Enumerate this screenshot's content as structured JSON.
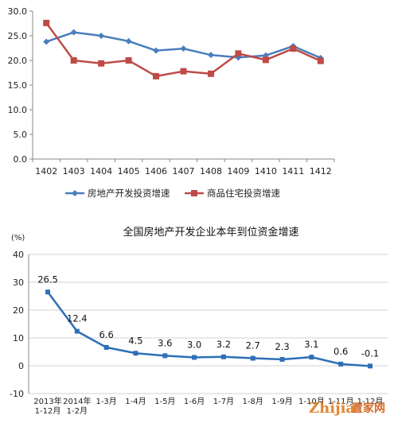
{
  "chart_data": [
    {
      "type": "line",
      "title": "",
      "categories": [
        "1402",
        "1403",
        "1404",
        "1405",
        "1406",
        "1407",
        "1408",
        "1409",
        "1410",
        "1411",
        "1412"
      ],
      "ylim": [
        0,
        30
      ],
      "yticks": [
        "0.0",
        "5.0",
        "10.0",
        "15.0",
        "20.0",
        "25.0",
        "30.0"
      ],
      "grid": false,
      "legend_position": "bottom",
      "series": [
        {
          "name": "房地产开发投资增速",
          "color": "#4a7ebb",
          "marker": "diamond",
          "values": [
            23.8,
            25.7,
            25.0,
            23.9,
            22.0,
            22.4,
            21.1,
            20.6,
            21.0,
            22.9,
            20.5
          ]
        },
        {
          "name": "商品住宅投资增速",
          "color": "#be4b48",
          "marker": "square",
          "values": [
            27.6,
            20.0,
            19.4,
            20.0,
            16.8,
            17.8,
            17.3,
            21.4,
            20.1,
            22.4,
            19.9
          ]
        }
      ]
    },
    {
      "type": "line",
      "title": "全国房地产开发企业本年到位资金增速",
      "ylabel": "(%)",
      "categories": [
        [
          "2013年",
          "1-12月"
        ],
        [
          "2014年",
          "1-2月"
        ],
        [
          "1-3月"
        ],
        [
          "1-4月"
        ],
        [
          "1-5月"
        ],
        [
          "1-6月"
        ],
        [
          "1-7月"
        ],
        [
          "1-8月"
        ],
        [
          "1-9月"
        ],
        [
          "1-10月"
        ],
        [
          "1-11月"
        ],
        [
          "1-12月"
        ]
      ],
      "ylim": [
        -10,
        40
      ],
      "yticks": [
        "-10",
        "0",
        "10",
        "20",
        "30",
        "40"
      ],
      "grid": true,
      "series": [
        {
          "color": "#2e6fb7",
          "marker": "square",
          "values": [
            26.5,
            12.4,
            6.6,
            4.5,
            3.6,
            3.0,
            3.2,
            2.7,
            2.3,
            3.1,
            0.6,
            -0.1
          ],
          "labels": [
            "26.5",
            "12.4",
            "6.6",
            "4.5",
            "3.6",
            "3.0",
            "3.2",
            "2.7",
            "2.3",
            "3.1",
            "0.6",
            "-0.1"
          ]
        }
      ]
    }
  ],
  "watermark": {
    "brand": "Zhijia",
    "cn": "置家网"
  }
}
